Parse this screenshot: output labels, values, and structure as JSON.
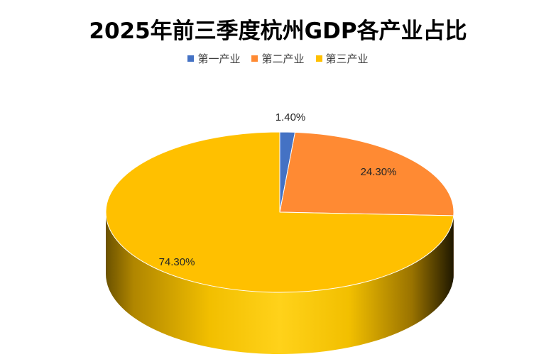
{
  "chart_data": {
    "type": "pie",
    "title": "2025年前三季度杭州GDP各产业占比",
    "categories": [
      "第一产业",
      "第二产业",
      "第三产业"
    ],
    "values": [
      1.4,
      24.3,
      74.3
    ],
    "labels": [
      "1.40%",
      "24.30%",
      "74.30%"
    ],
    "colors": [
      "#4472C4",
      "#FF8A33",
      "#FFC000"
    ],
    "legend_position": "top",
    "style": "3d"
  }
}
